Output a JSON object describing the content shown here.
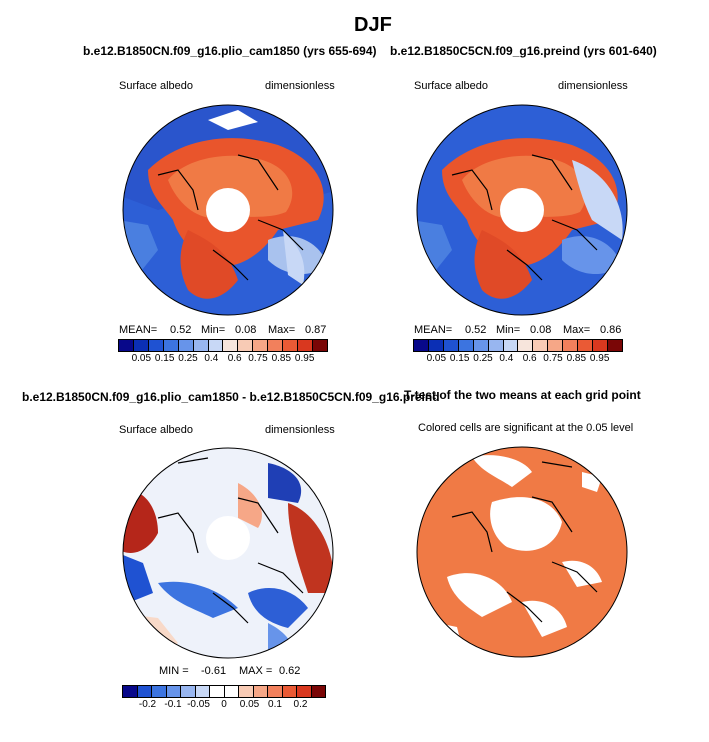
{
  "figure": {
    "season": "DJF"
  },
  "panels": [
    {
      "id": "plio",
      "title": "b.e12.B1850CN.f09_g16.plio_cam1850 (yrs 655-694)",
      "left_label": "Surface albedo",
      "right_label": "dimensionless",
      "stats": {
        "mean_label": "MEAN=",
        "mean": "0.52",
        "min_label": "Min=",
        "min": "0.08",
        "max_label": "Max=",
        "max": "0.87"
      },
      "colorbar": {
        "colors": [
          "#08088a",
          "#0b2fb5",
          "#1f52d2",
          "#3c74e0",
          "#6794ea",
          "#98b6f0",
          "#c8d8f6",
          "#f7e5dc",
          "#f8cbb5",
          "#f6a787",
          "#f2805c",
          "#ea5a35",
          "#d9381f",
          "#7a0606"
        ],
        "labels": [
          "0.05",
          "0.15",
          "0.25",
          "0.4",
          "0.6",
          "0.75",
          "0.85",
          "0.95"
        ]
      }
    },
    {
      "id": "preind",
      "title": "b.e12.B1850C5CN.f09_g16.preind (yrs 601-640)",
      "left_label": "Surface albedo",
      "right_label": "dimensionless",
      "stats": {
        "mean_label": "MEAN=",
        "mean": "0.52",
        "min_label": "Min=",
        "min": "0.08",
        "max_label": "Max=",
        "max": "0.86"
      },
      "colorbar": {
        "colors": [
          "#08088a",
          "#0b2fb5",
          "#1f52d2",
          "#3c74e0",
          "#6794ea",
          "#98b6f0",
          "#c8d8f6",
          "#f7e5dc",
          "#f8cbb5",
          "#f6a787",
          "#f2805c",
          "#ea5a35",
          "#d9381f",
          "#7a0606"
        ],
        "labels": [
          "0.05",
          "0.15",
          "0.25",
          "0.4",
          "0.6",
          "0.75",
          "0.85",
          "0.95"
        ]
      }
    },
    {
      "id": "diff",
      "title": "b.e12.B1850CN.f09_g16.plio_cam1850 - b.e12.B1850C5CN.f09_g16.preind",
      "left_label": "Surface albedo",
      "right_label": "dimensionless",
      "stats": {
        "min_label": "MIN =",
        "min": "-0.61",
        "max_label": "MAX =",
        "max": "0.62"
      },
      "colorbar": {
        "colors": [
          "#08088a",
          "#1f52d2",
          "#3c74e0",
          "#6794ea",
          "#98b6f0",
          "#c8d8f6",
          "#ffffff",
          "#ffffff",
          "#f8cbb5",
          "#f6a787",
          "#f2805c",
          "#ea5a35",
          "#d9381f",
          "#7a0606"
        ],
        "labels": [
          "-0.2",
          "-0.1",
          "-0.05",
          "0",
          "0.05",
          "0.1",
          "0.2"
        ]
      }
    },
    {
      "id": "ttest",
      "title": "T-test of the two means at each grid point",
      "subtitle": "Colored cells are significant at the 0.05 level",
      "fill_color": "#f07a45"
    }
  ]
}
